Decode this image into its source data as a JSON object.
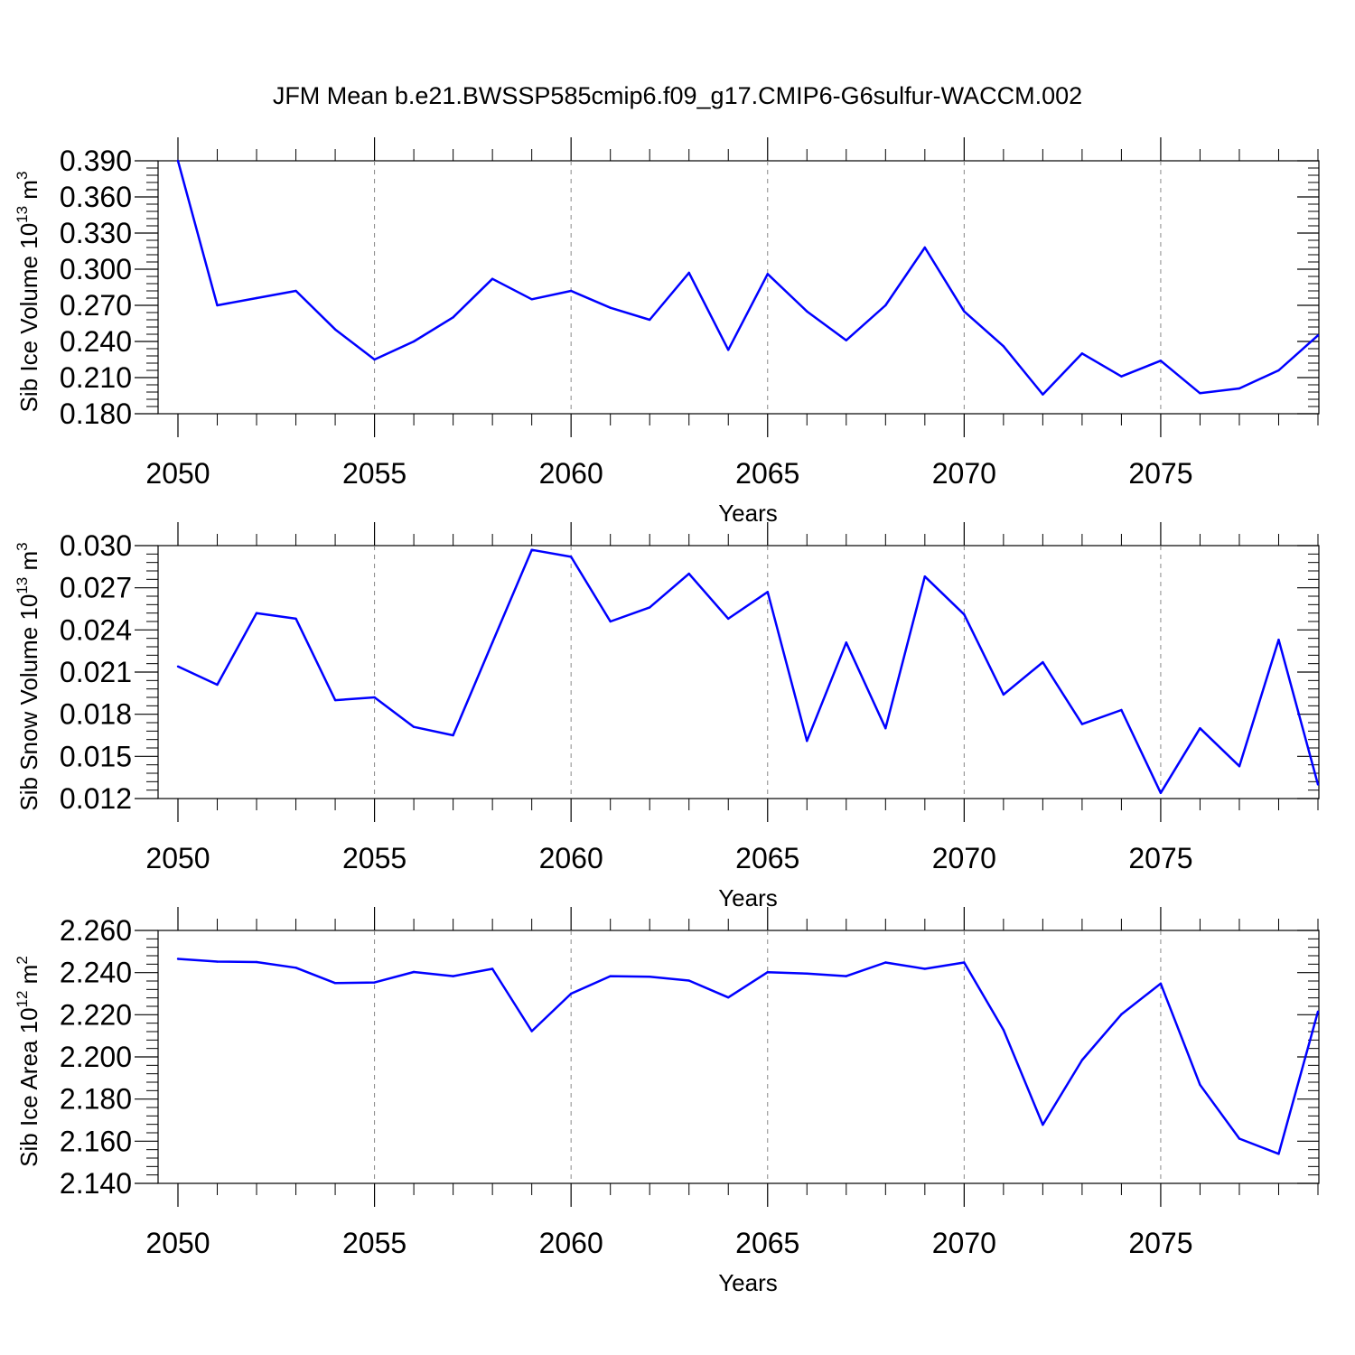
{
  "title": "JFM Mean b.e21.BWSSP585cmip6.f09_g17.CMIP6-G6sulfur-WACCM.002",
  "colors": {
    "line": "#0000ff",
    "axis": "#000000",
    "grid": "#888888"
  },
  "chart_data": [
    {
      "type": "line",
      "name": "sib-ice-volume",
      "xlabel": "Years",
      "ylabel_main": "Sib Ice Volume 10",
      "ylabel_exp": "13",
      "ylabel_unit": "m",
      "ylabel_unit_exp": "3",
      "xlim": [
        2050,
        2079
      ],
      "ylim": [
        0.18,
        0.39
      ],
      "x_ticks": [
        "2050",
        "2055",
        "2060",
        "2065",
        "2070",
        "2075"
      ],
      "y_ticks": [
        "0.180",
        "0.210",
        "0.240",
        "0.270",
        "0.300",
        "0.330",
        "0.360",
        "0.390"
      ],
      "grid": "vertical dashed at major x ticks",
      "x": [
        2050,
        2051,
        2052,
        2053,
        2054,
        2055,
        2056,
        2057,
        2058,
        2059,
        2060,
        2061,
        2062,
        2063,
        2064,
        2065,
        2066,
        2067,
        2068,
        2069,
        2070,
        2071,
        2072,
        2073,
        2074,
        2075,
        2076,
        2077,
        2078,
        2079
      ],
      "values": [
        0.39,
        0.27,
        0.276,
        0.282,
        0.25,
        0.225,
        0.24,
        0.26,
        0.292,
        0.275,
        0.282,
        0.268,
        0.258,
        0.297,
        0.233,
        0.296,
        0.265,
        0.241,
        0.27,
        0.318,
        0.265,
        0.236,
        0.196,
        0.23,
        0.211,
        0.224,
        0.197,
        0.201,
        0.216,
        0.245
      ]
    },
    {
      "type": "line",
      "name": "sib-snow-volume",
      "xlabel": "Years",
      "ylabel_main": "Sib Snow Volume 10",
      "ylabel_exp": "13",
      "ylabel_unit": "m",
      "ylabel_unit_exp": "3",
      "xlim": [
        2050,
        2079
      ],
      "ylim": [
        0.012,
        0.03
      ],
      "x_ticks": [
        "2050",
        "2055",
        "2060",
        "2065",
        "2070",
        "2075"
      ],
      "y_ticks": [
        "0.012",
        "0.015",
        "0.018",
        "0.021",
        "0.024",
        "0.027",
        "0.030"
      ],
      "grid": "vertical dashed at major x ticks",
      "x": [
        2050,
        2051,
        2052,
        2053,
        2054,
        2055,
        2056,
        2057,
        2058,
        2059,
        2060,
        2061,
        2062,
        2063,
        2064,
        2065,
        2066,
        2067,
        2068,
        2069,
        2070,
        2071,
        2072,
        2073,
        2074,
        2075,
        2076,
        2077,
        2078,
        2079
      ],
      "values": [
        0.0214,
        0.0201,
        0.0252,
        0.0248,
        0.019,
        0.0192,
        0.0171,
        0.0165,
        0.0231,
        0.0297,
        0.0292,
        0.0246,
        0.0256,
        0.028,
        0.0248,
        0.0267,
        0.0161,
        0.0231,
        0.017,
        0.0278,
        0.0251,
        0.0194,
        0.0217,
        0.0173,
        0.0183,
        0.0124,
        0.017,
        0.0143,
        0.0233,
        0.013
      ]
    },
    {
      "type": "line",
      "name": "sib-ice-area",
      "xlabel": "Years",
      "ylabel_main": "Sib Ice Area 10",
      "ylabel_exp": "12",
      "ylabel_unit": "m",
      "ylabel_unit_exp": "2",
      "xlim": [
        2050,
        2079
      ],
      "ylim": [
        2.14,
        2.26
      ],
      "x_ticks": [
        "2050",
        "2055",
        "2060",
        "2065",
        "2070",
        "2075"
      ],
      "y_ticks": [
        "2.140",
        "2.160",
        "2.180",
        "2.200",
        "2.220",
        "2.240",
        "2.260"
      ],
      "grid": "vertical dashed at major x ticks",
      "x": [
        2050,
        2051,
        2052,
        2053,
        2054,
        2055,
        2056,
        2057,
        2058,
        2059,
        2060,
        2061,
        2062,
        2063,
        2064,
        2065,
        2066,
        2067,
        2068,
        2069,
        2070,
        2071,
        2072,
        2073,
        2074,
        2075,
        2076,
        2077,
        2078,
        2079
      ],
      "values": [
        2.2465,
        2.2452,
        2.245,
        2.2423,
        2.235,
        2.2353,
        2.2403,
        2.2383,
        2.2418,
        2.2122,
        2.23,
        2.2383,
        2.238,
        2.2362,
        2.2282,
        2.2402,
        2.2395,
        2.2383,
        2.2448,
        2.2418,
        2.2448,
        2.2128,
        2.1678,
        2.1985,
        2.2202,
        2.2348,
        2.1868,
        2.1612,
        2.154,
        2.2215
      ]
    }
  ]
}
